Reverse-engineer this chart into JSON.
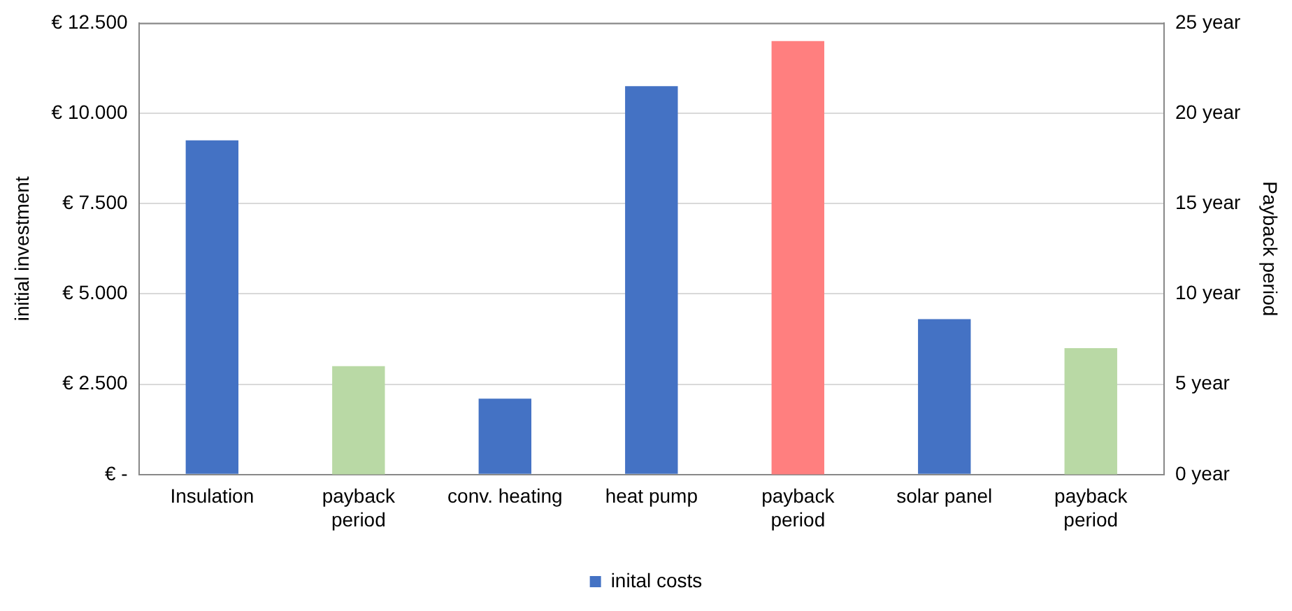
{
  "chart_data": {
    "type": "bar",
    "categories": [
      "Insulation",
      "payback period",
      "conv. heating",
      "heat pump",
      "payback period",
      "solar panel",
      "payback period"
    ],
    "ylabel": "initial investment",
    "y2label": "Payback period",
    "series": [
      {
        "name": "inital costs",
        "color": "#4472c4",
        "values": [
          9250,
          null,
          2100,
          10750,
          null,
          4300,
          null
        ]
      },
      {
        "axis": "y2",
        "colors": [
          null,
          "#b9d9a5",
          null,
          null,
          "#ff7f7f",
          null,
          "#b9d9a5"
        ],
        "values": [
          null,
          6,
          null,
          null,
          24,
          null,
          7
        ]
      }
    ],
    "ylim": [
      0,
      12500
    ],
    "yticks": [
      {
        "value": 0,
        "label": "€ -"
      },
      {
        "value": 2500,
        "label": "€ 2.500"
      },
      {
        "value": 5000,
        "label": "€ 5.000"
      },
      {
        "value": 7500,
        "label": "€ 7.500"
      },
      {
        "value": 10000,
        "label": "€ 10.000"
      },
      {
        "value": 12500,
        "label": "€ 12.500"
      }
    ],
    "y2lim": [
      0,
      25
    ],
    "y2ticks": [
      {
        "value": 0,
        "label": "0 year"
      },
      {
        "value": 5,
        "label": "5 year"
      },
      {
        "value": 10,
        "label": "10 year"
      },
      {
        "value": 15,
        "label": "15 year"
      },
      {
        "value": 20,
        "label": "20 year"
      },
      {
        "value": 25,
        "label": "25 year"
      }
    ],
    "grid": "y",
    "legend": "bottom"
  }
}
